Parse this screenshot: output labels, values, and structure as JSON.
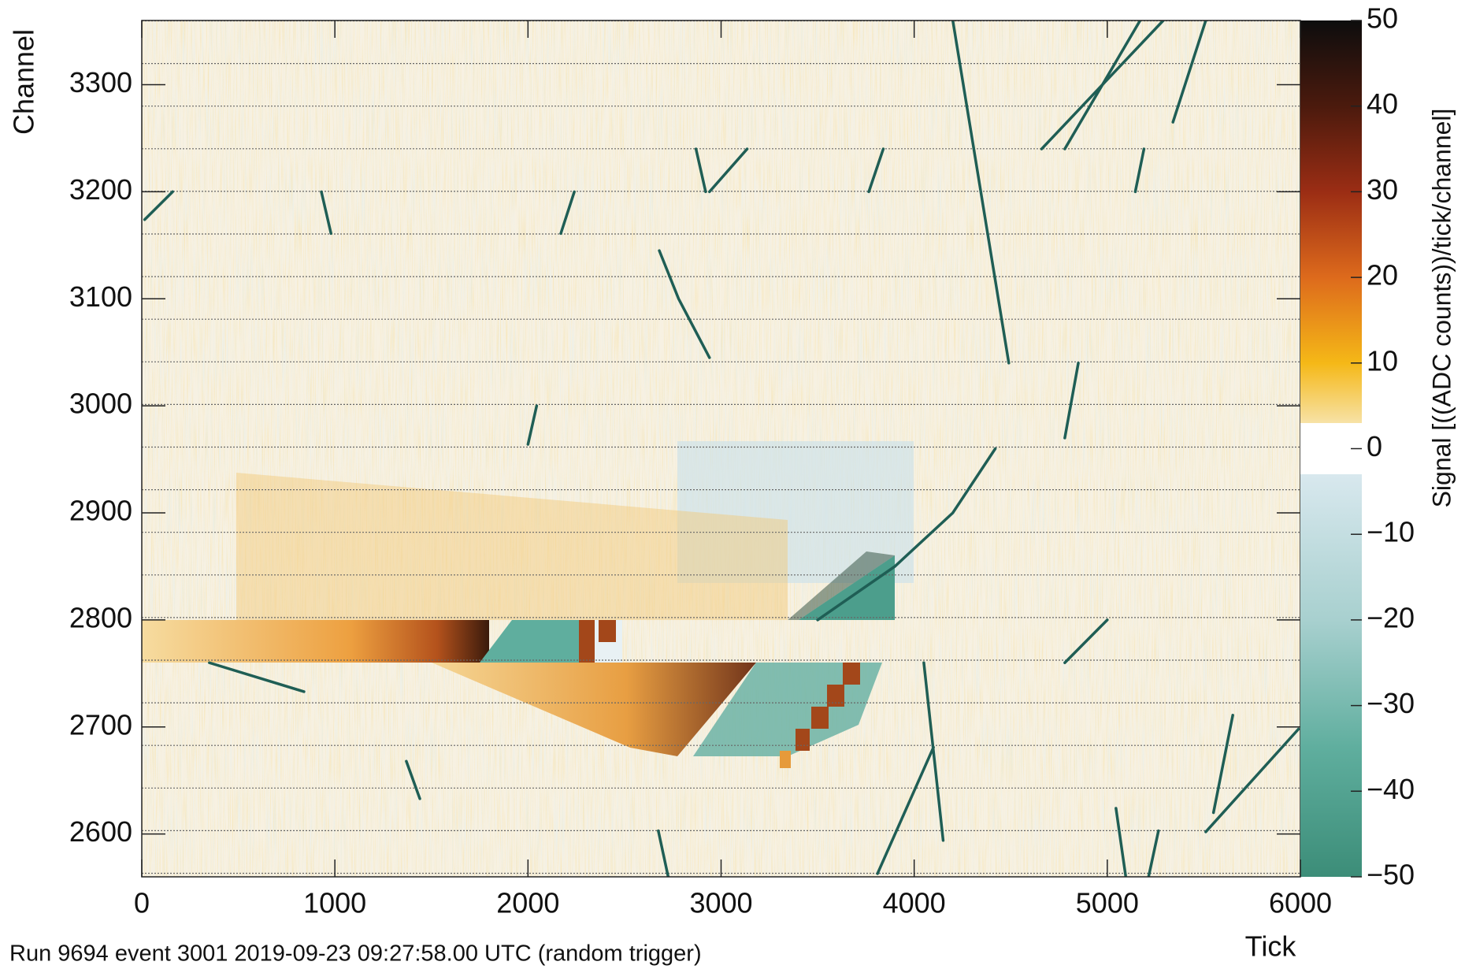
{
  "chart_data": {
    "type": "heatmap",
    "xlabel": "Tick",
    "ylabel": "Channel",
    "footer": "Run 9694 event 3001 2019-09-23 09:27:58.00 UTC (random trigger)",
    "colorbar_label": "Signal [((ADC counts))/tick/channel]",
    "xlim": [
      0,
      6000
    ],
    "xticks": [
      0,
      1000,
      2000,
      3000,
      4000,
      5000,
      6000
    ],
    "ylim": [
      2560,
      3360
    ],
    "yticks": [
      2600,
      2700,
      2800,
      2900,
      3000,
      3100,
      3200,
      3300
    ],
    "zlim": [
      -50,
      50
    ],
    "zticks": [
      {
        "value": -50,
        "label": "−50"
      },
      {
        "value": -40,
        "label": "−40"
      },
      {
        "value": -30,
        "label": "−30"
      },
      {
        "value": -20,
        "label": "−20"
      },
      {
        "value": -10,
        "label": "−10"
      },
      0,
      10,
      20,
      30,
      40,
      50
    ],
    "series": [
      {
        "color": "#1f5e55",
        "x": [
          4200,
          4490
        ],
        "values": [
          3360,
          3040
        ]
      },
      {
        "color": "#1f5e55",
        "x": [
          5170,
          4780
        ],
        "values": [
          3360,
          3240
        ]
      },
      {
        "color": "#1f5e55",
        "x": [
          5510,
          5340
        ],
        "values": [
          3360,
          3265
        ]
      },
      {
        "color": "#1f5e55",
        "x": [
          5290,
          4660
        ],
        "values": [
          3360,
          3240
        ]
      },
      {
        "color": "#1f5e55",
        "x": [
          2680,
          2780,
          2940
        ],
        "values": [
          3145,
          3100,
          3045
        ]
      },
      {
        "color": "#1f5e55",
        "x": [
          4420,
          4200,
          3900,
          3500
        ],
        "values": [
          2960,
          2900,
          2850,
          2800
        ]
      },
      {
        "color": "#1f5e55",
        "x": [
          4850,
          4780
        ],
        "values": [
          3040,
          2970
        ]
      },
      {
        "color": "#1f5e55",
        "x": [
          350,
          840
        ],
        "values": [
          2760,
          2733
        ]
      },
      {
        "color": "#1f5e55",
        "x": [
          5990,
          5510
        ],
        "values": [
          2698,
          2602
        ]
      },
      {
        "color": "#1f5e55",
        "x": [
          5650,
          5550
        ],
        "values": [
          2711,
          2620
        ]
      },
      {
        "color": "#1f5e55",
        "x": [
          4050,
          4150
        ],
        "values": [
          2760,
          2594
        ]
      },
      {
        "color": "#1f5e55",
        "x": [
          930,
          980
        ],
        "values": [
          3200,
          3161
        ]
      },
      {
        "color": "#1f5e55",
        "x": [
          15,
          160
        ],
        "values": [
          3174,
          3200
        ]
      },
      {
        "color": "#1f5e55",
        "x": [
          2240,
          2170
        ],
        "values": [
          3200,
          3161
        ]
      },
      {
        "color": "#1f5e55",
        "x": [
          2870,
          2920
        ],
        "values": [
          3240,
          3200
        ]
      },
      {
        "color": "#1f5e55",
        "x": [
          3135,
          2940
        ],
        "values": [
          3240,
          3200
        ]
      },
      {
        "color": "#1f5e55",
        "x": [
          3840,
          3765
        ],
        "values": [
          3240,
          3200
        ]
      },
      {
        "color": "#1f5e55",
        "x": [
          5190,
          5145
        ],
        "values": [
          3240,
          3200
        ]
      },
      {
        "color": "#1f5e55",
        "x": [
          2045,
          2000
        ],
        "values": [
          3000,
          2964
        ]
      },
      {
        "color": "#1f5e55",
        "x": [
          5000,
          4780
        ],
        "values": [
          2800,
          2760
        ]
      },
      {
        "color": "#1f5e55",
        "x": [
          4100,
          3810
        ],
        "values": [
          2681,
          2563
        ]
      },
      {
        "color": "#1f5e55",
        "x": [
          5045,
          5095
        ],
        "values": [
          2624,
          2561
        ]
      },
      {
        "color": "#1f5e55",
        "x": [
          2675,
          2725
        ],
        "values": [
          2603,
          2561
        ]
      },
      {
        "color": "#1f5e55",
        "x": [
          5265,
          5215
        ],
        "values": [
          2603,
          2561
        ]
      },
      {
        "color": "#1f5e55",
        "x": [
          1370,
          1440
        ],
        "values": [
          2668,
          2633
        ]
      }
    ]
  }
}
